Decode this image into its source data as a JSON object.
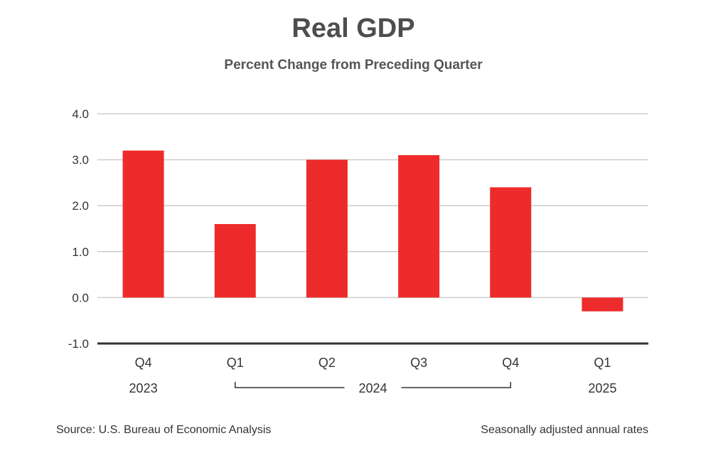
{
  "chart_data": {
    "type": "bar",
    "title": "Real GDP",
    "subtitle": "Percent Change from Preceding Quarter",
    "categories": [
      "Q4",
      "Q1",
      "Q2",
      "Q3",
      "Q4",
      "Q1"
    ],
    "category_groups": [
      {
        "label": "2023",
        "from": 0,
        "to": 0
      },
      {
        "label": "2024",
        "from": 1,
        "to": 4
      },
      {
        "label": "2025",
        "from": 5,
        "to": 5
      }
    ],
    "values": [
      3.2,
      1.6,
      3.0,
      3.1,
      2.4,
      -0.3
    ],
    "ylim": [
      -1.0,
      4.0
    ],
    "yticks": [
      "4.0",
      "3.0",
      "2.0",
      "1.0",
      "0.0",
      "-1.0"
    ],
    "ytick_values": [
      4,
      3,
      2,
      1,
      0,
      -1
    ],
    "grid": true,
    "bar_color": "#ee2b2b",
    "source": "Source: U.S. Bureau of Economic Analysis",
    "note": "Seasonally adjusted annual rates"
  }
}
